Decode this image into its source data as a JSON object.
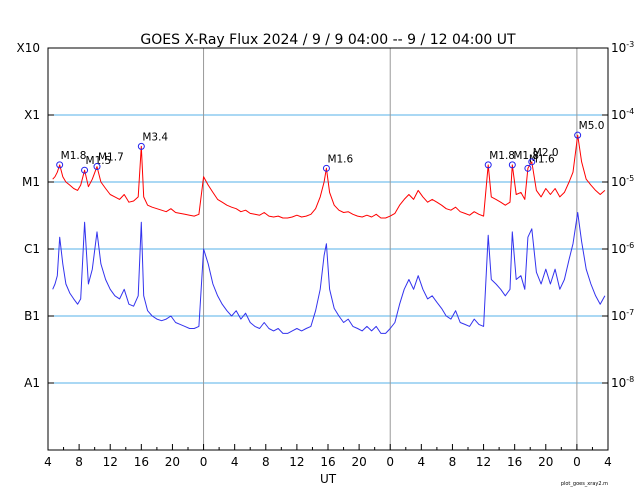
{
  "title": "GOES X-Ray Flux   2024 /  9 /  9   04:00 --  9 / 12   04:00   UT",
  "credit": "plot_goes_xray2.m",
  "chart_data": {
    "type": "line",
    "title": "GOES X-Ray Flux   2024 /  9 /  9   04:00 --  9 / 12   04:00   UT",
    "xlabel": "UT",
    "ylabel": "",
    "x_unit": "hours since 2024-09-09 00:00 UT",
    "xlim": [
      4,
      76
    ],
    "ylim": [
      1e-09,
      0.001
    ],
    "y_scale": "log",
    "grid": false,
    "legend": "none",
    "x_ticks": [
      {
        "x": 4,
        "label": "4"
      },
      {
        "x": 8,
        "label": "8"
      },
      {
        "x": 12,
        "label": "12"
      },
      {
        "x": 16,
        "label": "16"
      },
      {
        "x": 20,
        "label": "20"
      },
      {
        "x": 24,
        "label": "0"
      },
      {
        "x": 28,
        "label": "4"
      },
      {
        "x": 32,
        "label": "8"
      },
      {
        "x": 36,
        "label": "12"
      },
      {
        "x": 40,
        "label": "16"
      },
      {
        "x": 44,
        "label": "20"
      },
      {
        "x": 48,
        "label": "0"
      },
      {
        "x": 52,
        "label": "4"
      },
      {
        "x": 56,
        "label": "8"
      },
      {
        "x": 60,
        "label": "12"
      },
      {
        "x": 64,
        "label": "16"
      },
      {
        "x": 68,
        "label": "20"
      },
      {
        "x": 72,
        "label": "0"
      },
      {
        "x": 76,
        "label": "4"
      }
    ],
    "class_levels": [
      {
        "label": "A1",
        "value": 1e-08
      },
      {
        "label": "B1",
        "value": 1e-07
      },
      {
        "label": "C1",
        "value": 1e-06
      },
      {
        "label": "M1",
        "value": 1e-05
      },
      {
        "label": "X1",
        "value": 0.0001
      },
      {
        "label": "X10",
        "value": 0.001
      }
    ],
    "right_ticks": [
      {
        "value": 0.001,
        "base": "10",
        "exp": "-3"
      },
      {
        "value": 0.0001,
        "base": "10",
        "exp": "-4"
      },
      {
        "value": 1e-05,
        "base": "10",
        "exp": "-5"
      },
      {
        "value": 1e-06,
        "base": "10",
        "exp": "-6"
      },
      {
        "value": 1e-07,
        "base": "10",
        "exp": "-7"
      },
      {
        "value": 1e-08,
        "base": "10",
        "exp": "-8"
      }
    ],
    "day_boundaries": [
      24,
      48,
      72
    ],
    "flares": [
      {
        "label": "M1.8",
        "x": 5.5,
        "y": 1.8e-05
      },
      {
        "label": "M1.5",
        "x": 8.7,
        "y": 1.5e-05
      },
      {
        "label": "M1.7",
        "x": 10.3,
        "y": 1.7e-05
      },
      {
        "label": "M3.4",
        "x": 16.0,
        "y": 3.4e-05
      },
      {
        "label": "M1.6",
        "x": 39.8,
        "y": 1.6e-05
      },
      {
        "label": "M1.8",
        "x": 60.6,
        "y": 1.8e-05
      },
      {
        "label": "M1.8",
        "x": 63.7,
        "y": 1.8e-05
      },
      {
        "label": "M1.6",
        "x": 65.7,
        "y": 1.6e-05
      },
      {
        "label": "M2.0",
        "x": 66.2,
        "y": 2e-05
      },
      {
        "label": "M5.0",
        "x": 72.1,
        "y": 5e-05
      }
    ],
    "series": [
      {
        "name": "",
        "color": "#ff0000",
        "x": [
          4.6,
          4.9,
          5.2,
          5.5,
          5.9,
          6.3,
          6.8,
          7.3,
          7.8,
          8.2,
          8.7,
          9.2,
          9.7,
          10.3,
          10.8,
          11.4,
          12.0,
          12.6,
          13.2,
          13.8,
          14.4,
          15.0,
          15.6,
          16.0,
          16.3,
          16.8,
          17.4,
          18.0,
          18.6,
          19.2,
          19.8,
          20.4,
          21.0,
          21.6,
          22.2,
          22.8,
          23.4,
          24.0,
          24.6,
          25.2,
          25.8,
          26.4,
          27.0,
          27.6,
          28.2,
          28.8,
          29.4,
          30.0,
          30.6,
          31.2,
          31.8,
          32.4,
          33.0,
          33.6,
          34.2,
          34.8,
          35.4,
          36.0,
          36.6,
          37.2,
          37.8,
          38.4,
          39.0,
          39.5,
          39.8,
          40.2,
          40.8,
          41.4,
          42.0,
          42.6,
          43.2,
          43.8,
          44.4,
          45.0,
          45.6,
          46.2,
          46.8,
          47.4,
          48.0,
          48.6,
          49.2,
          49.8,
          50.4,
          51.0,
          51.6,
          52.2,
          52.8,
          53.4,
          54.0,
          54.6,
          55.2,
          55.8,
          56.4,
          57.0,
          57.6,
          58.2,
          58.8,
          59.4,
          60.0,
          60.6,
          61.0,
          61.6,
          62.2,
          62.8,
          63.4,
          63.7,
          64.2,
          64.8,
          65.3,
          65.7,
          66.2,
          66.8,
          67.4,
          68.0,
          68.6,
          69.2,
          69.8,
          70.4,
          71.0,
          71.5,
          72.1,
          72.6,
          73.2,
          73.8,
          74.4,
          75.0,
          75.6
        ],
        "y": [
          1.1e-05,
          1.2e-05,
          1.4e-05,
          1.8e-05,
          1.2e-05,
          1e-05,
          9e-06,
          8e-06,
          7.5e-06,
          9e-06,
          1.5e-05,
          8.5e-06,
          1.1e-05,
          1.7e-05,
          1e-05,
          8e-06,
          6.5e-06,
          6e-06,
          5.5e-06,
          6.5e-06,
          5e-06,
          5.2e-06,
          6e-06,
          3.4e-05,
          6e-06,
          4.5e-06,
          4.2e-06,
          4e-06,
          3.8e-06,
          3.6e-06,
          4e-06,
          3.5e-06,
          3.4e-06,
          3.3e-06,
          3.2e-06,
          3.1e-06,
          3.3e-06,
          1.2e-05,
          9e-06,
          7e-06,
          5.5e-06,
          5e-06,
          4.5e-06,
          4.2e-06,
          4e-06,
          3.6e-06,
          3.8e-06,
          3.4e-06,
          3.3e-06,
          3.2e-06,
          3.5e-06,
          3.1e-06,
          3e-06,
          3.1e-06,
          2.9e-06,
          2.9e-06,
          3e-06,
          3.2e-06,
          3e-06,
          3.1e-06,
          3.3e-06,
          4e-06,
          6e-06,
          1e-05,
          1.6e-05,
          7e-06,
          4.5e-06,
          3.8e-06,
          3.5e-06,
          3.6e-06,
          3.3e-06,
          3.1e-06,
          3e-06,
          3.2e-06,
          3e-06,
          3.3e-06,
          2.9e-06,
          2.9e-06,
          3.1e-06,
          3.4e-06,
          4.5e-06,
          5.5e-06,
          6.5e-06,
          5.5e-06,
          7.5e-06,
          6e-06,
          5e-06,
          5.5e-06,
          5e-06,
          4.5e-06,
          4e-06,
          3.8e-06,
          4.2e-06,
          3.6e-06,
          3.4e-06,
          3.2e-06,
          3.6e-06,
          3.3e-06,
          3.1e-06,
          1.8e-05,
          6e-06,
          5.5e-06,
          5e-06,
          4.5e-06,
          5e-06,
          1.8e-05,
          6.5e-06,
          7e-06,
          5.5e-06,
          1.6e-05,
          2e-05,
          7.5e-06,
          6e-06,
          8e-06,
          6.5e-06,
          8e-06,
          6e-06,
          7e-06,
          1e-05,
          1.4e-05,
          5e-05,
          2e-05,
          1.1e-05,
          9e-06,
          7.5e-06,
          6.5e-06,
          7.5e-06
        ]
      },
      {
        "name": "",
        "color": "#3333ee",
        "x": [
          4.6,
          4.9,
          5.2,
          5.5,
          5.9,
          6.3,
          6.8,
          7.3,
          7.8,
          8.2,
          8.7,
          9.2,
          9.7,
          10.3,
          10.8,
          11.4,
          12.0,
          12.6,
          13.2,
          13.8,
          14.4,
          15.0,
          15.6,
          16.0,
          16.3,
          16.8,
          17.4,
          18.0,
          18.6,
          19.2,
          19.8,
          20.4,
          21.0,
          21.6,
          22.2,
          22.8,
          23.4,
          24.0,
          24.6,
          25.2,
          25.8,
          26.4,
          27.0,
          27.6,
          28.2,
          28.8,
          29.4,
          30.0,
          30.6,
          31.2,
          31.8,
          32.4,
          33.0,
          33.6,
          34.2,
          34.8,
          35.4,
          36.0,
          36.6,
          37.2,
          37.8,
          38.4,
          39.0,
          39.5,
          39.8,
          40.2,
          40.8,
          41.4,
          42.0,
          42.6,
          43.2,
          43.8,
          44.4,
          45.0,
          45.6,
          46.2,
          46.8,
          47.4,
          48.0,
          48.6,
          49.2,
          49.8,
          50.4,
          51.0,
          51.6,
          52.2,
          52.8,
          53.4,
          54.0,
          54.6,
          55.2,
          55.8,
          56.4,
          57.0,
          57.6,
          58.2,
          58.8,
          59.4,
          60.0,
          60.6,
          61.0,
          61.6,
          62.2,
          62.8,
          63.4,
          63.7,
          64.2,
          64.8,
          65.3,
          65.7,
          66.2,
          66.8,
          67.4,
          68.0,
          68.6,
          69.2,
          69.8,
          70.4,
          71.0,
          71.5,
          72.1,
          72.6,
          73.2,
          73.8,
          74.4,
          75.0,
          75.6
        ],
        "y": [
          2.5e-07,
          3e-07,
          4e-07,
          1.5e-06,
          6e-07,
          3e-07,
          2.2e-07,
          1.8e-07,
          1.5e-07,
          1.8e-07,
          2.5e-06,
          3e-07,
          5e-07,
          1.8e-06,
          6e-07,
          3.5e-07,
          2.5e-07,
          2e-07,
          1.8e-07,
          2.5e-07,
          1.5e-07,
          1.4e-07,
          2e-07,
          2.5e-06,
          2e-07,
          1.2e-07,
          1e-07,
          9e-08,
          8.5e-08,
          9e-08,
          1e-07,
          8e-08,
          7.5e-08,
          7e-08,
          6.5e-08,
          6.5e-08,
          7e-08,
          1e-06,
          6e-07,
          3e-07,
          2e-07,
          1.5e-07,
          1.2e-07,
          1e-07,
          1.2e-07,
          9e-08,
          1.1e-07,
          8e-08,
          7e-08,
          6.5e-08,
          8e-08,
          6.5e-08,
          6e-08,
          6.5e-08,
          5.5e-08,
          5.5e-08,
          6e-08,
          6.5e-08,
          6e-08,
          6.5e-08,
          7e-08,
          1.2e-07,
          2.5e-07,
          8e-07,
          1.2e-06,
          2.5e-07,
          1.3e-07,
          1e-07,
          8e-08,
          9e-08,
          7e-08,
          6.5e-08,
          6e-08,
          7e-08,
          6e-08,
          7e-08,
          5.5e-08,
          5.5e-08,
          6.5e-08,
          8e-08,
          1.5e-07,
          2.5e-07,
          3.5e-07,
          2.5e-07,
          4e-07,
          2.5e-07,
          1.8e-07,
          2e-07,
          1.6e-07,
          1.3e-07,
          1e-07,
          9e-08,
          1.2e-07,
          8e-08,
          7.5e-08,
          7e-08,
          9e-08,
          7.5e-08,
          7e-08,
          1.6e-06,
          3.5e-07,
          3e-07,
          2.5e-07,
          2e-07,
          2.5e-07,
          1.8e-06,
          3.5e-07,
          4e-07,
          2.5e-07,
          1.5e-06,
          2e-06,
          4.5e-07,
          3e-07,
          5e-07,
          3e-07,
          5e-07,
          2.5e-07,
          3.5e-07,
          7e-07,
          1.2e-06,
          3.5e-06,
          1.3e-06,
          5e-07,
          3e-07,
          2e-07,
          1.5e-07,
          2e-07
        ]
      }
    ]
  }
}
